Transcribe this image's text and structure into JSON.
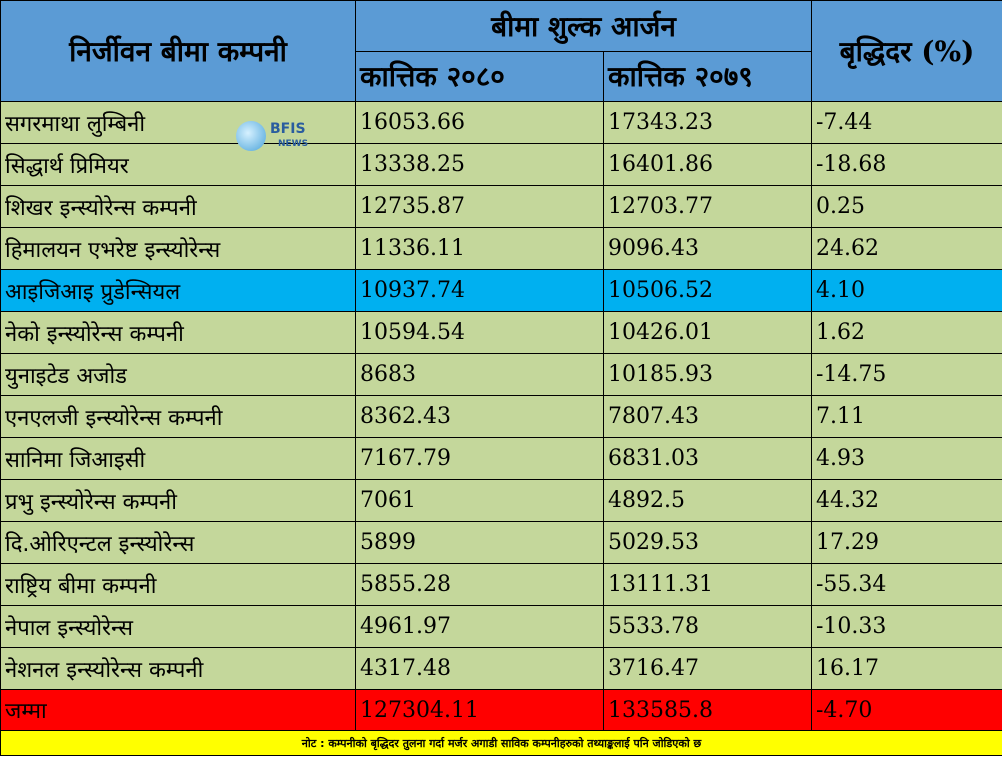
{
  "header": {
    "company_col": "निर्जीवन बीमा कम्पनी",
    "premium_group": "बीमा शुल्क आर्जन",
    "col_2080": "कात्तिक २०८०",
    "col_2079": "कात्तिक २०७९",
    "growth_col": "बृद्धिदर (%)"
  },
  "rows": [
    {
      "name": "सगरमाथा लुम्बिनी",
      "v2080": "16053.66",
      "v2079": "17343.23",
      "growth": "-7.44"
    },
    {
      "name": "सिद्धार्थ प्रिमियर",
      "v2080": "13338.25",
      "v2079": "16401.86",
      "growth": "-18.68"
    },
    {
      "name": "शिखर इन्स्योरेन्स कम्पनी",
      "v2080": "12735.87",
      "v2079": "12703.77",
      "growth": "0.25"
    },
    {
      "name": "हिमालयन एभरेष्ट इन्स्योरेन्स",
      "v2080": "11336.11",
      "v2079": "9096.43",
      "growth": "24.62"
    },
    {
      "name": "आइजिआइ प्रुडेन्सियल",
      "v2080": "10937.74",
      "v2079": "10506.52",
      "growth": "4.10"
    },
    {
      "name": "नेको इन्स्योरेन्स कम्पनी",
      "v2080": "10594.54",
      "v2079": "10426.01",
      "growth": "1.62"
    },
    {
      "name": "युनाइटेड अजोड",
      "v2080": "8683",
      "v2079": "10185.93",
      "growth": "-14.75"
    },
    {
      "name": "एनएलजी इन्स्योरेन्स कम्पनी",
      "v2080": "8362.43",
      "v2079": "7807.43",
      "growth": "7.11"
    },
    {
      "name": "सानिमा जिआइसी",
      "v2080": "7167.79",
      "v2079": "6831.03",
      "growth": "4.93"
    },
    {
      "name": "प्रभु इन्स्योरेन्स कम्पनी",
      "v2080": "7061",
      "v2079": "4892.5",
      "growth": "44.32"
    },
    {
      "name": "दि.ओरिएन्टल इन्स्योरेन्स",
      "v2080": "5899",
      "v2079": "5029.53",
      "growth": "17.29"
    },
    {
      "name": "राष्ट्रिय बीमा कम्पनी",
      "v2080": "5855.28",
      "v2079": "13111.31",
      "growth": "-55.34"
    },
    {
      "name": "नेपाल इन्स्योरेन्स",
      "v2080": "4961.97",
      "v2079": "5533.78",
      "growth": "-10.33"
    },
    {
      "name": "नेशनल इन्स्योरेन्स कम्पनी",
      "v2080": "4317.48",
      "v2079": "3716.47",
      "growth": "16.17"
    }
  ],
  "total": {
    "name": "जम्मा",
    "v2080": "127304.11",
    "v2079": "133585.8",
    "growth": "-4.70"
  },
  "note": "नोट : कम्पनीको बृद्धिदर तुलना गर्दा मर्जर अगाडी साविक कम्पनीहरुको तथ्याङ्कलाई पनि जोडिएको छ",
  "logo": {
    "brand": "BFIS",
    "tagline": "NEWS"
  },
  "colors": {
    "header": "#5b9bd5",
    "row": "#c4d79b",
    "highlight": "#00b0f0",
    "total": "#ff0000",
    "note": "#ffff00"
  }
}
